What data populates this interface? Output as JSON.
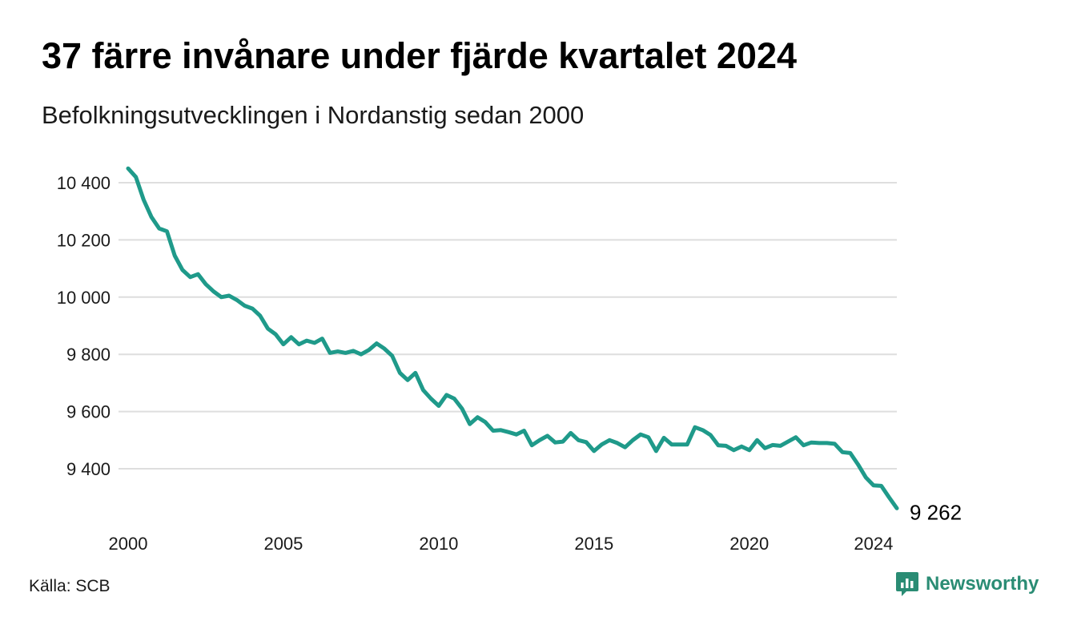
{
  "title": "37 färre invånare under fjärde kvartalet 2024",
  "subtitle": "Befolkningsutvecklingen i Nordanstig sedan 2000",
  "source": "Källa: SCB",
  "brand": "Newsworthy",
  "colors": {
    "line": "#1f9a8a",
    "grid": "#dedede",
    "brand": "#2a8c74"
  },
  "chart_data": {
    "type": "line",
    "title": "37 färre invånare under fjärde kvartalet 2024",
    "subtitle": "Befolkningsutvecklingen i Nordanstig sedan 2000",
    "xlabel": "",
    "ylabel": "",
    "xlim": [
      2000,
      2024.75
    ],
    "ylim": [
      9262,
      10450
    ],
    "x_ticks": [
      2000,
      2005,
      2010,
      2015,
      2020,
      2024
    ],
    "x_tick_labels": [
      "2000",
      "2005",
      "2010",
      "2015",
      "2020",
      "2024"
    ],
    "y_ticks": [
      9400,
      9600,
      9800,
      10000,
      10200,
      10400
    ],
    "y_tick_labels": [
      "9 400",
      "9 600",
      "9 800",
      "10 000",
      "10 200",
      "10 400"
    ],
    "grid": "horizontal",
    "end_label": "9 262",
    "series": [
      {
        "x": [
          2000.0,
          2000.25,
          2000.5,
          2000.75,
          2001.0,
          2001.25,
          2001.5,
          2001.75,
          2002.0,
          2002.25,
          2002.5,
          2002.75,
          2003.0,
          2003.25,
          2003.5,
          2003.75,
          2004.0,
          2004.25,
          2004.5,
          2004.75,
          2005.0,
          2005.25,
          2005.5,
          2005.75,
          2006.0,
          2006.25,
          2006.5,
          2006.75,
          2007.0,
          2007.25,
          2007.5,
          2007.75,
          2008.0,
          2008.25,
          2008.5,
          2008.75,
          2009.0,
          2009.25,
          2009.5,
          2009.75,
          2010.0,
          2010.25,
          2010.5,
          2010.75,
          2011.0,
          2011.25,
          2011.5,
          2011.75,
          2012.0,
          2012.25,
          2012.5,
          2012.75,
          2013.0,
          2013.25,
          2013.5,
          2013.75,
          2014.0,
          2014.25,
          2014.5,
          2014.75,
          2015.0,
          2015.25,
          2015.5,
          2015.75,
          2016.0,
          2016.25,
          2016.5,
          2016.75,
          2017.0,
          2017.25,
          2017.5,
          2017.75,
          2018.0,
          2018.25,
          2018.5,
          2018.75,
          2019.0,
          2019.25,
          2019.5,
          2019.75,
          2020.0,
          2020.25,
          2020.5,
          2020.75,
          2021.0,
          2021.25,
          2021.5,
          2021.75,
          2022.0,
          2022.25,
          2022.5,
          2022.75,
          2023.0,
          2023.25,
          2023.5,
          2023.75,
          2024.0,
          2024.25,
          2024.5,
          2024.75
        ],
        "values": [
          10450,
          10420,
          10340,
          10280,
          10240,
          10230,
          10145,
          10095,
          10070,
          10080,
          10045,
          10020,
          10000,
          10005,
          9990,
          9970,
          9960,
          9935,
          9890,
          9870,
          9835,
          9860,
          9835,
          9848,
          9840,
          9855,
          9805,
          9810,
          9805,
          9812,
          9800,
          9815,
          9838,
          9820,
          9795,
          9735,
          9710,
          9735,
          9675,
          9645,
          9620,
          9658,
          9645,
          9610,
          9556,
          9580,
          9563,
          9533,
          9535,
          9528,
          9520,
          9533,
          9482,
          9500,
          9515,
          9492,
          9495,
          9525,
          9500,
          9493,
          9462,
          9485,
          9500,
          9490,
          9475,
          9500,
          9520,
          9510,
          9462,
          9508,
          9485,
          9485,
          9485,
          9545,
          9535,
          9518,
          9482,
          9480,
          9465,
          9478,
          9465,
          9500,
          9472,
          9483,
          9480,
          9495,
          9510,
          9482,
          9492,
          9490,
          9490,
          9487,
          9458,
          9455,
          9415,
          9370,
          9342,
          9340,
          9300,
          9262
        ]
      }
    ]
  }
}
